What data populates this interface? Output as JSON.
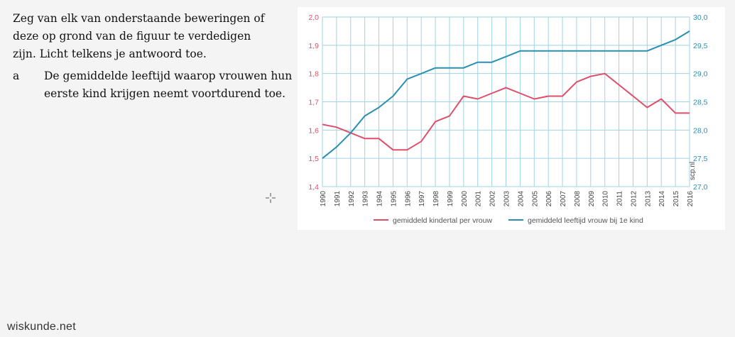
{
  "question": {
    "intro_lines": [
      "Zeg van elk van onderstaande beweringen of",
      "deze op grond van de figuur te verdedigen",
      "zijn. Licht telkens je antwoord toe."
    ],
    "item_letter": "a",
    "item_lines": [
      "De gemiddelde leeftijd waarop vrouwen hun",
      "eerste kind krijgen neemt voortdurend toe."
    ]
  },
  "footer": {
    "brand": "wiskunde.net"
  },
  "chart_data": {
    "type": "line",
    "x": [
      1990,
      1991,
      1992,
      1993,
      1994,
      1995,
      1996,
      1997,
      1998,
      1999,
      2000,
      2001,
      2002,
      2003,
      2004,
      2005,
      2006,
      2007,
      2008,
      2009,
      2010,
      2011,
      2012,
      2013,
      2014,
      2015,
      2016
    ],
    "series": [
      {
        "name": "gemiddeld kindertal per vrouw",
        "axis": "left",
        "color": "#e04f6a",
        "values": [
          1.62,
          1.61,
          1.59,
          1.57,
          1.57,
          1.53,
          1.53,
          1.56,
          1.63,
          1.65,
          1.72,
          1.71,
          1.73,
          1.75,
          1.73,
          1.71,
          1.72,
          1.72,
          1.77,
          1.79,
          1.8,
          1.76,
          1.72,
          1.68,
          1.71,
          1.66,
          1.66
        ]
      },
      {
        "name": "gemiddeld leeftijd vrouw bij 1e kind",
        "axis": "right",
        "color": "#2a8fb1",
        "values": [
          27.5,
          27.7,
          27.95,
          28.25,
          28.4,
          28.6,
          28.9,
          29.0,
          29.1,
          29.1,
          29.1,
          29.2,
          29.2,
          29.3,
          29.4,
          29.4,
          29.4,
          29.4,
          29.4,
          29.4,
          29.4,
          29.4,
          29.4,
          29.4,
          29.5,
          29.6,
          29.75
        ]
      }
    ],
    "y_left": {
      "min": 1.4,
      "max": 2.0,
      "ticks": [
        "1,4",
        "1,5",
        "1,6",
        "1,7",
        "1,8",
        "1,9",
        "2,0"
      ],
      "color": "#e04f6a"
    },
    "y_right": {
      "min": 27.0,
      "max": 30.0,
      "ticks": [
        "27,0",
        "27,5",
        "28,0",
        "28,5",
        "29,0",
        "29,5",
        "30,0"
      ],
      "color": "#2a8fb1"
    },
    "x_ticks": [
      "1990",
      "1991",
      "1992",
      "1993",
      "1994",
      "1995",
      "1996",
      "1997",
      "1998",
      "1999",
      "2000",
      "2001",
      "2002",
      "2003",
      "2004",
      "2005",
      "2006",
      "2007",
      "2008",
      "2009",
      "2010",
      "2011",
      "2012",
      "2013",
      "2014",
      "2015",
      "2016"
    ],
    "source_label": "scp.nl",
    "legend_labels": [
      "gemiddeld kindertal per vrouw",
      "gemiddeld leeftijd vrouw bij 1e kind"
    ],
    "legend_position": "bottom",
    "grid": true,
    "grid_color": "#9fd3e3"
  }
}
